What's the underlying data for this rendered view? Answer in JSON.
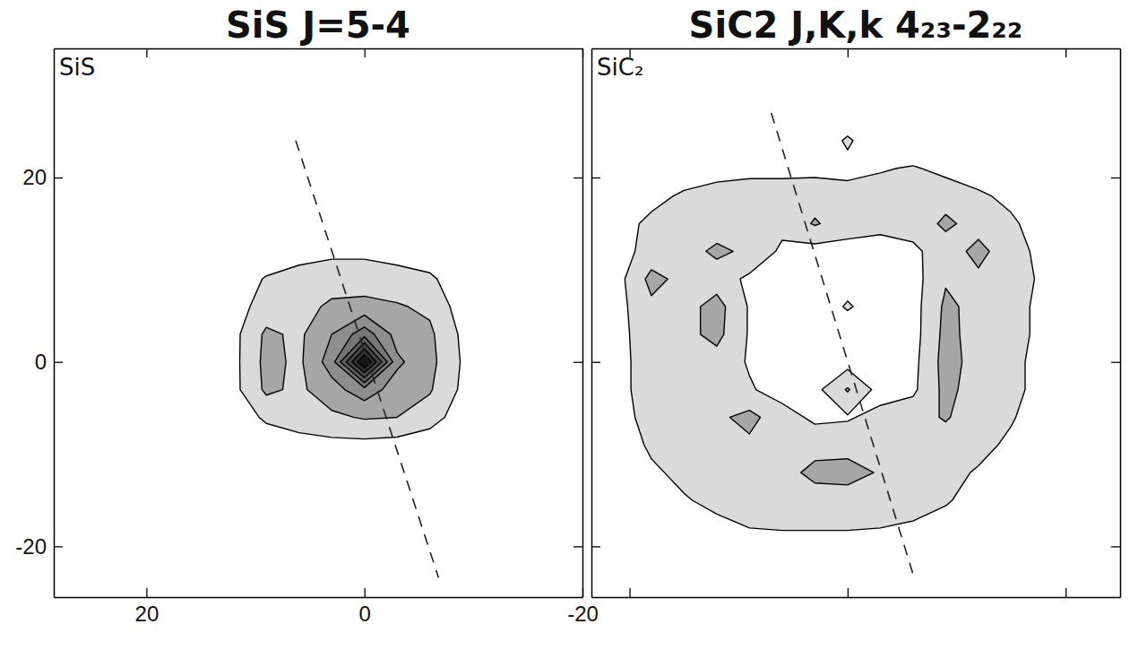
{
  "chart_data": [
    {
      "type": "contour",
      "title": "SiS J=5-4",
      "annotation": "SiS",
      "xlim": [
        28.5,
        -20
      ],
      "ylim": [
        -25.5,
        34
      ],
      "xticks": [
        20,
        0,
        -20
      ],
      "yticks": [
        20,
        0,
        -20
      ],
      "tick_labels": true,
      "levels": [
        1,
        2,
        3,
        4,
        5,
        6,
        7,
        8
      ],
      "x": [
        15,
        12,
        9,
        6,
        3,
        0,
        -3,
        -6,
        -9,
        -12
      ],
      "y": [
        15,
        12,
        9,
        6,
        3,
        0,
        -3,
        -6,
        -9,
        -12
      ],
      "z": [
        [
          0,
          0,
          0,
          0,
          0,
          0,
          0,
          0,
          0,
          0
        ],
        [
          0,
          0,
          0.2,
          0.6,
          0.8,
          0.8,
          0.6,
          0.3,
          0,
          0
        ],
        [
          0,
          0.3,
          1.1,
          1.4,
          1.5,
          1.5,
          1.4,
          1.2,
          0.3,
          0
        ],
        [
          0,
          0.6,
          1.4,
          1.6,
          2.2,
          2.3,
          2.1,
          1.8,
          0.5,
          0
        ],
        [
          0,
          0.7,
          2.2,
          1.8,
          3.0,
          4.6,
          2.6,
          2.2,
          0.8,
          0
        ],
        [
          0,
          0.7,
          2.3,
          1.8,
          3.5,
          9.2,
          3.2,
          2.3,
          0.9,
          0
        ],
        [
          0,
          0.7,
          2.2,
          1.8,
          2.6,
          3.6,
          2.5,
          2.1,
          0.8,
          0
        ],
        [
          0,
          0.3,
          1.2,
          1.5,
          1.8,
          2.1,
          2.0,
          1.5,
          0.4,
          0
        ],
        [
          0,
          0,
          0.3,
          0.6,
          0.7,
          0.7,
          0.6,
          0.3,
          0,
          0
        ],
        [
          0,
          0,
          0,
          0,
          0,
          0,
          0,
          0,
          0,
          0
        ]
      ],
      "reference_line": {
        "x": [
          6.3,
          -6.8
        ],
        "y": [
          24,
          -23.4
        ],
        "line_style": "dashed"
      }
    },
    {
      "type": "contour",
      "title": "SiC2  J,K,k 4₂₃-2₂₂",
      "annotation": "SiC₂",
      "xlim": [
        23.5,
        -25
      ],
      "ylim": [
        -25.5,
        34
      ],
      "xticks": [
        20,
        0,
        -20
      ],
      "yticks": [
        20,
        0,
        -20
      ],
      "tick_labels": false,
      "levels": [
        1,
        2
      ],
      "x": [
        21,
        18,
        15,
        12,
        9,
        6,
        3,
        0,
        -3,
        -6,
        -9,
        -12,
        -15,
        -18,
        -21
      ],
      "y": [
        27,
        24,
        21,
        18,
        15,
        12,
        9,
        6,
        3,
        0,
        -3,
        -6,
        -9,
        -12,
        -15,
        -18,
        -21
      ],
      "z": [
        [
          0,
          0,
          0,
          0,
          0,
          0,
          0,
          0,
          0,
          0,
          0,
          0,
          0,
          0,
          0
        ],
        [
          0,
          0,
          0,
          0,
          0,
          0,
          0,
          1.2,
          0,
          0,
          0,
          0,
          0,
          0,
          0
        ],
        [
          0,
          0,
          0.2,
          0.6,
          0.7,
          0.7,
          0.7,
          0.6,
          0.9,
          1.1,
          0.7,
          0.3,
          0,
          0,
          0
        ],
        [
          0.2,
          0.6,
          1.2,
          1.4,
          1.5,
          1.5,
          1.6,
          1.5,
          1.5,
          1.6,
          1.6,
          1.2,
          0.7,
          0.2,
          0
        ],
        [
          0.5,
          1.3,
          1.5,
          1.5,
          1.4,
          1.3,
          2.1,
          1.5,
          1.2,
          1.4,
          2.2,
          1.6,
          1.2,
          0.4,
          0
        ],
        [
          0.6,
          1.4,
          1.6,
          2.2,
          1.8,
          0.8,
          0.6,
          0.6,
          0.7,
          0.8,
          1.5,
          2.3,
          1.4,
          0.7,
          0
        ],
        [
          0.7,
          2.3,
          1.7,
          1.5,
          0.8,
          0.5,
          0.4,
          0.6,
          0.5,
          0.6,
          1.9,
          1.8,
          1.5,
          0.8,
          0
        ],
        [
          0.7,
          1.8,
          1.6,
          2.4,
          0.9,
          0.4,
          0.4,
          1.1,
          0.5,
          0.6,
          2.2,
          1.7,
          1.4,
          0.7,
          0
        ],
        [
          0.7,
          1.6,
          1.7,
          2.3,
          0.9,
          0.4,
          0.3,
          0.4,
          0.4,
          0.6,
          2.3,
          1.6,
          1.4,
          0.7,
          0
        ],
        [
          0.7,
          1.5,
          1.6,
          1.6,
          0.9,
          0.4,
          0.5,
          0.6,
          0.5,
          0.7,
          2.4,
          1.6,
          1.3,
          0.6,
          0
        ],
        [
          0.7,
          1.5,
          1.6,
          1.5,
          1.1,
          0.6,
          0.7,
          2.1,
          0.6,
          0.8,
          2.3,
          1.5,
          1.3,
          0.6,
          0
        ],
        [
          0.6,
          1.4,
          1.7,
          1.8,
          2.3,
          1.4,
          0.8,
          0.9,
          1.3,
          1.6,
          2.1,
          1.4,
          1.1,
          0.4,
          0
        ],
        [
          0.3,
          1.2,
          1.5,
          1.6,
          1.8,
          1.5,
          1.6,
          1.6,
          1.5,
          1.5,
          1.5,
          1.3,
          0.8,
          0.2,
          0
        ],
        [
          0,
          0.8,
          1.3,
          1.5,
          1.5,
          1.6,
          2.3,
          2.4,
          1.9,
          1.5,
          1.3,
          0.9,
          0.3,
          0,
          0
        ],
        [
          0,
          0.4,
          0.9,
          1.3,
          1.4,
          1.4,
          1.5,
          1.5,
          1.4,
          1.3,
          1.1,
          0.6,
          0,
          0,
          0
        ],
        [
          0,
          0,
          0.3,
          0.7,
          1.0,
          1.1,
          1.1,
          1.1,
          1.0,
          0.9,
          0.6,
          0.2,
          0,
          0,
          0
        ],
        [
          0,
          0,
          0,
          0,
          0,
          0,
          0,
          0,
          0,
          0,
          0,
          0,
          0,
          0,
          0
        ]
      ],
      "reference_line": {
        "x": [
          7,
          -6
        ],
        "y": [
          27,
          -23
        ],
        "line_style": "dashed"
      }
    }
  ]
}
